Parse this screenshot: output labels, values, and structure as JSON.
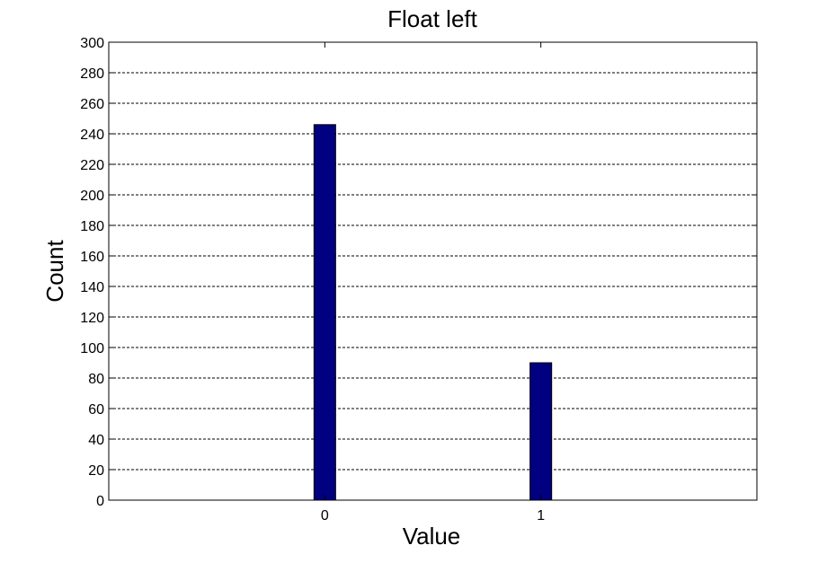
{
  "chart_data": {
    "type": "bar",
    "title": "Float left",
    "xlabel": "Value",
    "ylabel": "Count",
    "categories": [
      "0",
      "1"
    ],
    "x": [
      0,
      1
    ],
    "values": [
      246,
      90
    ],
    "xlim": [
      -1,
      2
    ],
    "ylim": [
      0,
      300
    ],
    "yticks": [
      0,
      20,
      40,
      60,
      80,
      100,
      120,
      140,
      160,
      180,
      200,
      220,
      240,
      260,
      280,
      300
    ],
    "grid": "y-dashed",
    "legend": "none",
    "bar_color": "#000080",
    "bar_edge_color": "#000000"
  }
}
